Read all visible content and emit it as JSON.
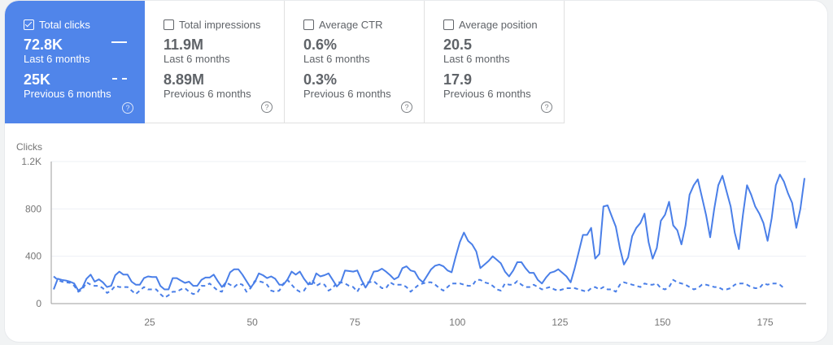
{
  "metrics": [
    {
      "label": "Total clicks",
      "checked": true,
      "current": "72.8K",
      "current_label": "Last 6 months",
      "previous": "25K",
      "previous_label": "Previous 6 months"
    },
    {
      "label": "Total impressions",
      "checked": false,
      "current": "11.9M",
      "current_label": "Last 6 months",
      "previous": "8.89M",
      "previous_label": "Previous 6 months"
    },
    {
      "label": "Average CTR",
      "checked": false,
      "current": "0.6%",
      "current_label": "Last 6 months",
      "previous": "0.3%",
      "previous_label": "Previous 6 months"
    },
    {
      "label": "Average position",
      "checked": false,
      "current": "20.5",
      "current_label": "Last 6 months",
      "previous": "17.9",
      "previous_label": "Previous 6 months"
    }
  ],
  "help_glyph": "?",
  "colors": {
    "accent": "#5085ea",
    "line": "#4a7fe8"
  },
  "chart_data": {
    "type": "line",
    "ylabel": "Clicks",
    "ylim": [
      0,
      1200
    ],
    "xlim": [
      1,
      185
    ],
    "yticks": [
      "0",
      "400",
      "800",
      "1.2K"
    ],
    "ytick_values": [
      0,
      400,
      800,
      1200
    ],
    "xticks": [
      25,
      50,
      75,
      100,
      125,
      150,
      175
    ],
    "grid": true,
    "series": [
      {
        "style": "solid",
        "values": [
          120,
          210,
          200,
          195,
          185,
          170,
          110,
          135,
          210,
          245,
          185,
          205,
          180,
          140,
          150,
          240,
          270,
          245,
          245,
          185,
          160,
          160,
          215,
          230,
          225,
          225,
          150,
          120,
          120,
          215,
          215,
          195,
          175,
          185,
          150,
          150,
          200,
          220,
          220,
          245,
          190,
          140,
          180,
          265,
          290,
          290,
          245,
          190,
          135,
          180,
          255,
          240,
          215,
          230,
          210,
          160,
          160,
          205,
          270,
          245,
          270,
          210,
          165,
          165,
          255,
          230,
          240,
          255,
          200,
          145,
          180,
          280,
          275,
          270,
          280,
          200,
          135,
          190,
          270,
          275,
          295,
          270,
          240,
          205,
          225,
          300,
          315,
          280,
          270,
          210,
          180,
          235,
          290,
          320,
          330,
          315,
          280,
          265,
          400,
          520,
          600,
          530,
          500,
          440,
          300,
          330,
          360,
          400,
          370,
          340,
          270,
          230,
          280,
          350,
          350,
          300,
          260,
          260,
          200,
          170,
          220,
          260,
          270,
          290,
          260,
          230,
          180,
          300,
          440,
          580,
          580,
          640,
          380,
          420,
          820,
          830,
          740,
          650,
          470,
          330,
          390,
          570,
          640,
          680,
          760,
          520,
          380,
          470,
          700,
          750,
          860,
          660,
          620,
          500,
          660,
          920,
          1000,
          1050,
          900,
          750,
          560,
          800,
          1000,
          1080,
          950,
          820,
          600,
          460,
          750,
          1000,
          920,
          820,
          760,
          680,
          530,
          720,
          1000,
          1090,
          1030,
          930,
          850,
          640,
          800,
          1060
        ]
      },
      {
        "style": "dashed",
        "values": [
          230,
          200,
          185,
          180,
          175,
          150,
          100,
          120,
          180,
          160,
          150,
          150,
          130,
          90,
          110,
          150,
          140,
          140,
          140,
          110,
          80,
          110,
          140,
          120,
          120,
          120,
          80,
          50,
          70,
          100,
          100,
          120,
          130,
          100,
          80,
          90,
          150,
          150,
          170,
          140,
          110,
          100,
          180,
          160,
          140,
          170,
          160,
          100,
          130,
          190,
          190,
          180,
          160,
          110,
          100,
          110,
          170,
          200,
          160,
          120,
          100,
          110,
          160,
          200,
          150,
          170,
          160,
          110,
          130,
          180,
          180,
          170,
          150,
          140,
          100,
          160,
          180,
          180,
          190,
          160,
          130,
          130,
          180,
          160,
          160,
          160,
          140,
          100,
          130,
          160,
          170,
          180,
          180,
          160,
          130,
          110,
          140,
          170,
          170,
          170,
          160,
          150,
          150,
          200,
          200,
          180,
          170,
          150,
          120,
          110,
          170,
          160,
          160,
          190,
          160,
          140,
          140,
          160,
          140,
          120,
          130,
          140,
          120,
          110,
          120,
          130,
          130,
          130,
          120,
          110,
          100,
          130,
          140,
          120,
          140,
          120,
          120,
          100,
          160,
          180,
          170,
          160,
          150,
          140,
          170,
          160,
          160,
          170,
          130,
          120,
          140,
          200,
          180,
          170,
          160,
          140,
          120,
          130,
          160,
          160,
          150,
          140,
          140,
          120,
          120,
          130,
          160,
          170,
          170,
          160,
          140,
          130,
          130,
          170,
          160,
          170,
          170,
          160,
          130
        ]
      }
    ]
  }
}
